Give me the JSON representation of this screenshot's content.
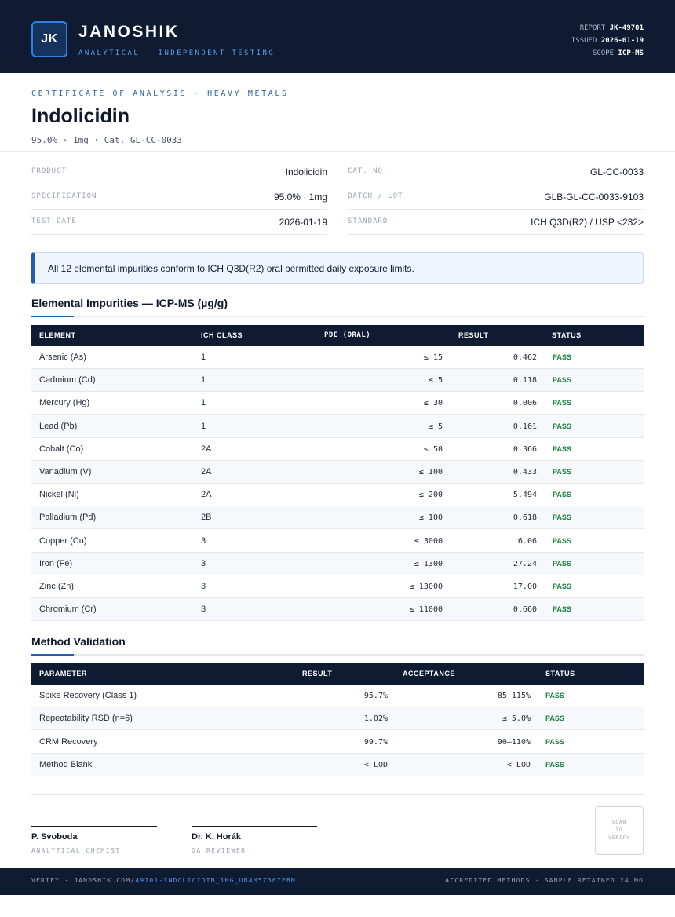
{
  "header": {
    "logo_initials": "JK",
    "brand": "JANOSHIK",
    "tagline": "ANALYTICAL · INDEPENDENT TESTING",
    "report_label": "REPORT",
    "report_value": "JK-49701",
    "issued_label": "ISSUED",
    "issued_value": "2026-01-19",
    "scope_label": "SCOPE",
    "scope_value": "ICP-MS"
  },
  "title_block": {
    "eyebrow": "CERTIFICATE OF ANALYSIS · HEAVY METALS",
    "title": "Indolicidin",
    "subline": "95.0% · 1mg  ·  Cat. GL-CC-0033"
  },
  "info": {
    "product_label": "PRODUCT",
    "product_value": "Indolicidin",
    "spec_label": "SPECIFICATION",
    "spec_value": "95.0% · 1mg",
    "date_label": "TEST DATE",
    "date_value": "2026-01-19",
    "cat_label": "CAT. NO.",
    "cat_value": "GL-CC-0033",
    "batch_label": "BATCH / LOT",
    "batch_value": "GLB-GL-CC-0033-9103",
    "standard_label": "STANDARD",
    "standard_value": "ICH Q3D(R2) / USP <232>"
  },
  "banner": "All 12 elemental impurities conform to ICH Q3D(R2) oral permitted daily exposure limits.",
  "impurities": {
    "heading": "Elemental Impurities — ICP-MS (µg/g)",
    "columns": {
      "element": "ELEMENT",
      "ich_class": "ICH CLASS",
      "pde": "PDE (ORAL)",
      "result": "RESULT",
      "status": "STATUS"
    },
    "rows": [
      {
        "element": "Arsenic (As)",
        "ich_class": "1",
        "pde": "≤ 15",
        "result": "0.462",
        "status": "PASS"
      },
      {
        "element": "Cadmium (Cd)",
        "ich_class": "1",
        "pde": "≤ 5",
        "result": "0.118",
        "status": "PASS"
      },
      {
        "element": "Mercury (Hg)",
        "ich_class": "1",
        "pde": "≤ 30",
        "result": "0.006",
        "status": "PASS"
      },
      {
        "element": "Lead (Pb)",
        "ich_class": "1",
        "pde": "≤ 5",
        "result": "0.161",
        "status": "PASS"
      },
      {
        "element": "Cobalt (Co)",
        "ich_class": "2A",
        "pde": "≤ 50",
        "result": "0.366",
        "status": "PASS"
      },
      {
        "element": "Vanadium (V)",
        "ich_class": "2A",
        "pde": "≤ 100",
        "result": "0.433",
        "status": "PASS"
      },
      {
        "element": "Nickel (Ni)",
        "ich_class": "2A",
        "pde": "≤ 200",
        "result": "5.494",
        "status": "PASS"
      },
      {
        "element": "Palladium (Pd)",
        "ich_class": "2B",
        "pde": "≤ 100",
        "result": "0.618",
        "status": "PASS"
      },
      {
        "element": "Copper (Cu)",
        "ich_class": "3",
        "pde": "≤ 3000",
        "result": "6.06",
        "status": "PASS"
      },
      {
        "element": "Iron (Fe)",
        "ich_class": "3",
        "pde": "≤ 1300",
        "result": "27.24",
        "status": "PASS"
      },
      {
        "element": "Zinc (Zn)",
        "ich_class": "3",
        "pde": "≤ 13000",
        "result": "17.00",
        "status": "PASS"
      },
      {
        "element": "Chromium (Cr)",
        "ich_class": "3",
        "pde": "≤ 11000",
        "result": "0.660",
        "status": "PASS"
      }
    ]
  },
  "validation": {
    "heading": "Method Validation",
    "columns": {
      "parameter": "PARAMETER",
      "result": "RESULT",
      "acceptance": "ACCEPTANCE",
      "status": "STATUS"
    },
    "rows": [
      {
        "parameter": "Spike Recovery (Class 1)",
        "result": "95.7%",
        "acceptance": "85–115%",
        "status": "PASS"
      },
      {
        "parameter": "Repeatability RSD (n=6)",
        "result": "1.02%",
        "acceptance": "≤ 5.0%",
        "status": "PASS"
      },
      {
        "parameter": "CRM Recovery",
        "result": "99.7%",
        "acceptance": "90–110%",
        "status": "PASS"
      },
      {
        "parameter": "Method Blank",
        "result": "< LOD",
        "acceptance": "< LOD",
        "status": "PASS"
      }
    ]
  },
  "signatures": [
    {
      "name": "P. Svoboda",
      "role": "ANALYTICAL CHEMIST"
    },
    {
      "name": "Dr. K. Horák",
      "role": "QA REVIEWER"
    }
  ],
  "qr": {
    "line1": "SCAN",
    "line2": "TO",
    "line3": "VERIFY"
  },
  "footer": {
    "verify_prefix": "VERIFY · JANOSHIK.COM/",
    "verify_path": "49701-INDOLICIDIN_1MG_UN4M5Z367EBM",
    "right": "ACCREDITED METHODS · SAMPLE RETAINED 24 MO"
  },
  "colors": {
    "navy": "#0f1b33",
    "accent_blue": "#1f5fb0",
    "pass_green": "#15803d",
    "banner_bg": "#eef5fd"
  }
}
